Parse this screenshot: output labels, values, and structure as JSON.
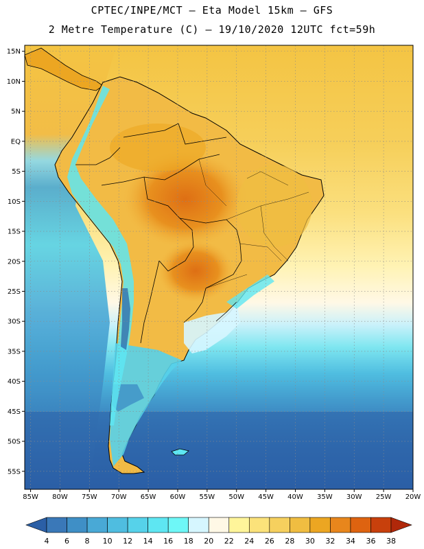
{
  "header": {
    "line1": "CPTEC/INPE/MCT –  Eta Model 15km – GFS",
    "line2": "2 Metre Temperature (C) – 19/10/2020 12UTC fct=59h"
  },
  "axes": {
    "lat_labels": [
      "15N",
      "10N",
      "5N",
      "EQ",
      "5S",
      "10S",
      "15S",
      "20S",
      "25S",
      "30S",
      "35S",
      "40S",
      "45S",
      "50S",
      "55S"
    ],
    "lon_labels": [
      "85W",
      "80W",
      "75W",
      "70W",
      "65W",
      "60W",
      "55W",
      "50W",
      "45W",
      "40W",
      "35W",
      "30W",
      "25W",
      "20W"
    ],
    "lat_range": [
      16,
      -58
    ],
    "lon_range": [
      -86,
      -20
    ]
  },
  "colorbar": {
    "labels": [
      "4",
      "6",
      "8",
      "10",
      "12",
      "14",
      "16",
      "18",
      "20",
      "22",
      "24",
      "26",
      "28",
      "30",
      "32",
      "34",
      "36",
      "38"
    ],
    "colors": [
      "#2b5fa6",
      "#3a78b8",
      "#3f8fc6",
      "#49a9d6",
      "#4fbde0",
      "#56d2ea",
      "#5ee6f2",
      "#6ef7f7",
      "#d6f6ff",
      "#fff8e6",
      "#fff59a",
      "#fbe27a",
      "#f6d05e",
      "#f0bd41",
      "#eca622",
      "#e8861c",
      "#de6310",
      "#c8400c",
      "#b0280a"
    ]
  },
  "palette": {
    "ocean_north": "#f5c847",
    "ocean_deep_south": "#2b5fa6",
    "land_hot": "#e8901e",
    "land_warm": "#f2bb45",
    "andes_cold": "#5ee6f2"
  }
}
